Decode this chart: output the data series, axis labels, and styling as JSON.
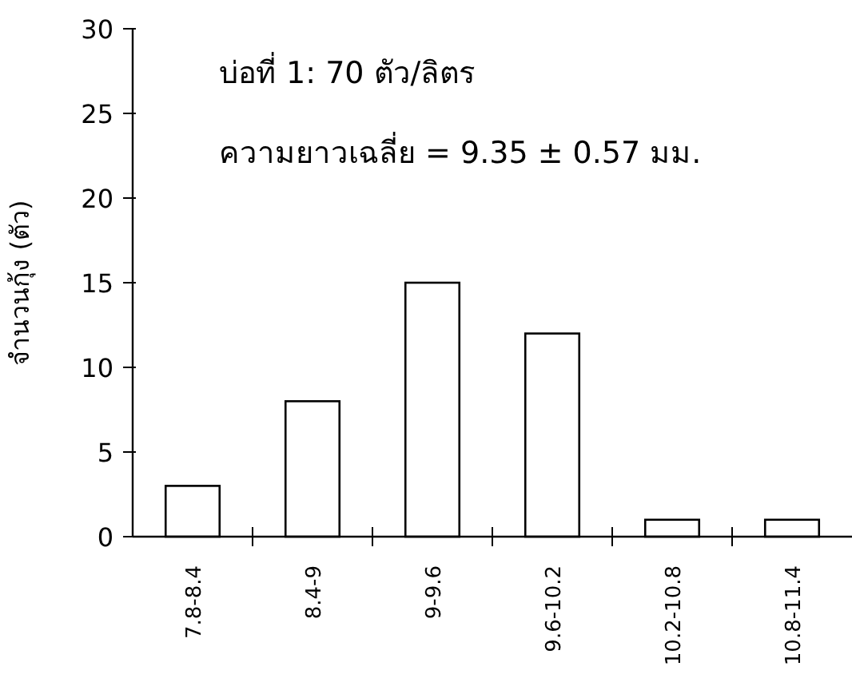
{
  "chart_data": {
    "type": "bar",
    "categories": [
      "7.8-8.4",
      "8.4-9",
      "9-9.6",
      "9.6-10.2",
      "10.2-10.8",
      "10.8-11.4"
    ],
    "values": [
      3,
      8,
      15,
      12,
      1,
      1
    ],
    "color": "#ffffff",
    "ylabel": "จำนวนกุ้ง (ตัว)",
    "ylim": [
      0,
      30
    ],
    "yticks": [
      0,
      5,
      10,
      15,
      20,
      25,
      30
    ],
    "annotations": [
      "บ่อที่ 1: 70 ตัว/ลิตร",
      "ความยาวเฉลี่ย = 9.35 ± 0.57 มม."
    ]
  }
}
